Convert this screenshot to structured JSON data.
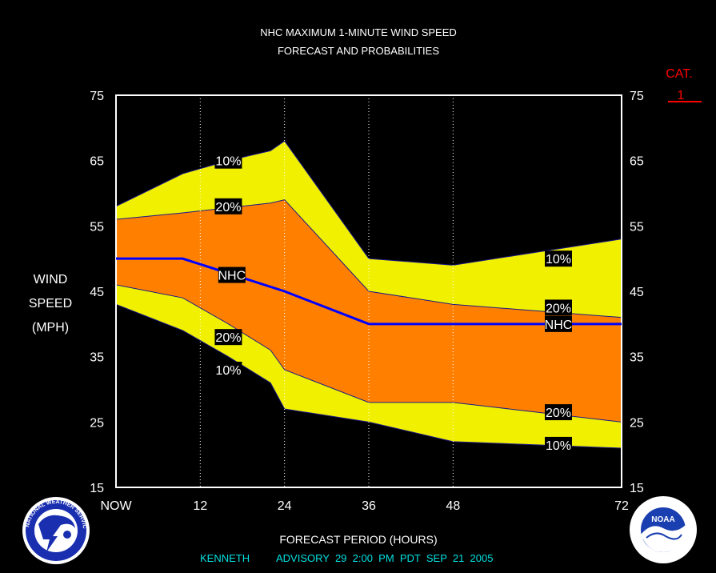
{
  "chart_data": {
    "type": "area",
    "title": "NHC MAXIMUM 1-MINUTE WIND SPEED",
    "subtitle": "FORECAST AND PROBABILITIES",
    "xlabel": "FORECAST PERIOD (HOURS)",
    "ylabel_lines": [
      "WIND",
      "SPEED",
      "(MPH)"
    ],
    "xlim": [
      0,
      72
    ],
    "ylim": [
      15,
      75
    ],
    "x_ticks": [
      {
        "x": 0,
        "label": "NOW"
      },
      {
        "x": 12,
        "label": "12"
      },
      {
        "x": 24,
        "label": "24"
      },
      {
        "x": 36,
        "label": "36"
      },
      {
        "x": 48,
        "label": "48"
      },
      {
        "x": 72,
        "label": "72"
      }
    ],
    "y_ticks": [
      15,
      25,
      35,
      45,
      55,
      65,
      75
    ],
    "colors": {
      "outer_band": "#f0f000",
      "inner_band": "#ff8000",
      "forecast_line": "#0000ff",
      "category": "#ff0000",
      "advisory": "#00e0e0"
    },
    "band_10pct": {
      "upper": [
        [
          0,
          58
        ],
        [
          9.5,
          63
        ],
        [
          16,
          65
        ],
        [
          22,
          66.5
        ],
        [
          24,
          68
        ],
        [
          36,
          50
        ],
        [
          48,
          49
        ],
        [
          60,
          51
        ],
        [
          72,
          53
        ]
      ],
      "lower": [
        [
          0,
          43
        ],
        [
          9.5,
          39
        ],
        [
          16,
          35
        ],
        [
          22,
          31
        ],
        [
          24,
          27
        ],
        [
          36,
          25
        ],
        [
          48,
          22
        ],
        [
          60,
          21.5
        ],
        [
          72,
          21
        ]
      ]
    },
    "band_20pct": {
      "upper": [
        [
          0,
          56
        ],
        [
          9.5,
          57
        ],
        [
          22,
          58.5
        ],
        [
          24,
          59
        ],
        [
          36,
          45
        ],
        [
          48,
          43
        ],
        [
          60,
          42
        ],
        [
          72,
          41
        ]
      ],
      "lower": [
        [
          0,
          46
        ],
        [
          9.5,
          44
        ],
        [
          16,
          40
        ],
        [
          22,
          36
        ],
        [
          24,
          33
        ],
        [
          36,
          28
        ],
        [
          48,
          28
        ],
        [
          60,
          26.5
        ],
        [
          72,
          25
        ]
      ]
    },
    "series": [
      {
        "name": "NHC",
        "x": [
          0,
          9.5,
          24,
          36,
          48,
          72
        ],
        "y": [
          50,
          50,
          45,
          40,
          40,
          40
        ]
      }
    ],
    "annotations": [
      {
        "text": "10%",
        "x": 16,
        "y": 65
      },
      {
        "text": "20%",
        "x": 16,
        "y": 58
      },
      {
        "text": "NHC",
        "x": 16.5,
        "y": 47.5
      },
      {
        "text": "20%",
        "x": 16,
        "y": 38
      },
      {
        "text": "10%",
        "x": 16,
        "y": 33
      },
      {
        "text": "10%",
        "x": 63,
        "y": 50
      },
      {
        "text": "20%",
        "x": 63,
        "y": 42.5
      },
      {
        "text": "NHC",
        "x": 63,
        "y": 40
      },
      {
        "text": "20%",
        "x": 63,
        "y": 26.5
      },
      {
        "text": "10%",
        "x": 63,
        "y": 21.5
      }
    ],
    "category_label": "CAT.",
    "category_value": "1",
    "footer": {
      "storm": "KENNETH",
      "advisory": "ADVISORY  29  2:00  PM  PDT  SEP  21  2005"
    },
    "logos": [
      {
        "name": "nws-logo",
        "text": "NATIONAL WEATHER SERVICE"
      },
      {
        "name": "noaa-logo",
        "text": "NOAA"
      }
    ]
  }
}
